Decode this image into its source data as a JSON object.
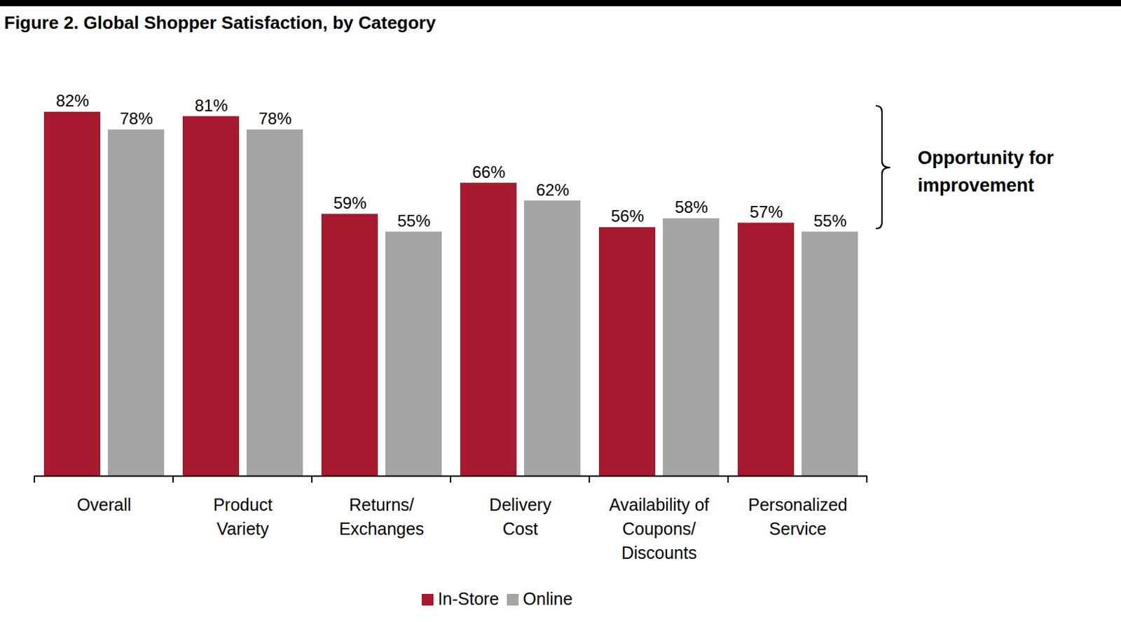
{
  "chart_data": {
    "type": "bar",
    "title": "Figure 2. Global Shopper Satisfaction, by Category",
    "categories": [
      "Overall",
      "Product Variety",
      "Returns/ Exchanges",
      "Delivery Cost",
      "Availability of Coupons/ Discounts",
      "Personalized Service"
    ],
    "series": [
      {
        "name": "In-Store",
        "color": "#A6192E",
        "values": [
          82,
          81,
          59,
          66,
          56,
          57
        ],
        "value_labels": [
          "82%",
          "81%",
          "59%",
          "66%",
          "56%",
          "57%"
        ]
      },
      {
        "name": "Online",
        "color": "#A5A5A5",
        "values": [
          78,
          78,
          55,
          62,
          58,
          55
        ],
        "value_labels": [
          "78%",
          "78%",
          "55%",
          "62%",
          "58%",
          "55%"
        ]
      }
    ],
    "ylim": [
      0,
      90
    ],
    "data_labels": true,
    "tick_labels": "x",
    "legend": "bottom",
    "annotations": [
      "Opportunity for improvement"
    ]
  }
}
